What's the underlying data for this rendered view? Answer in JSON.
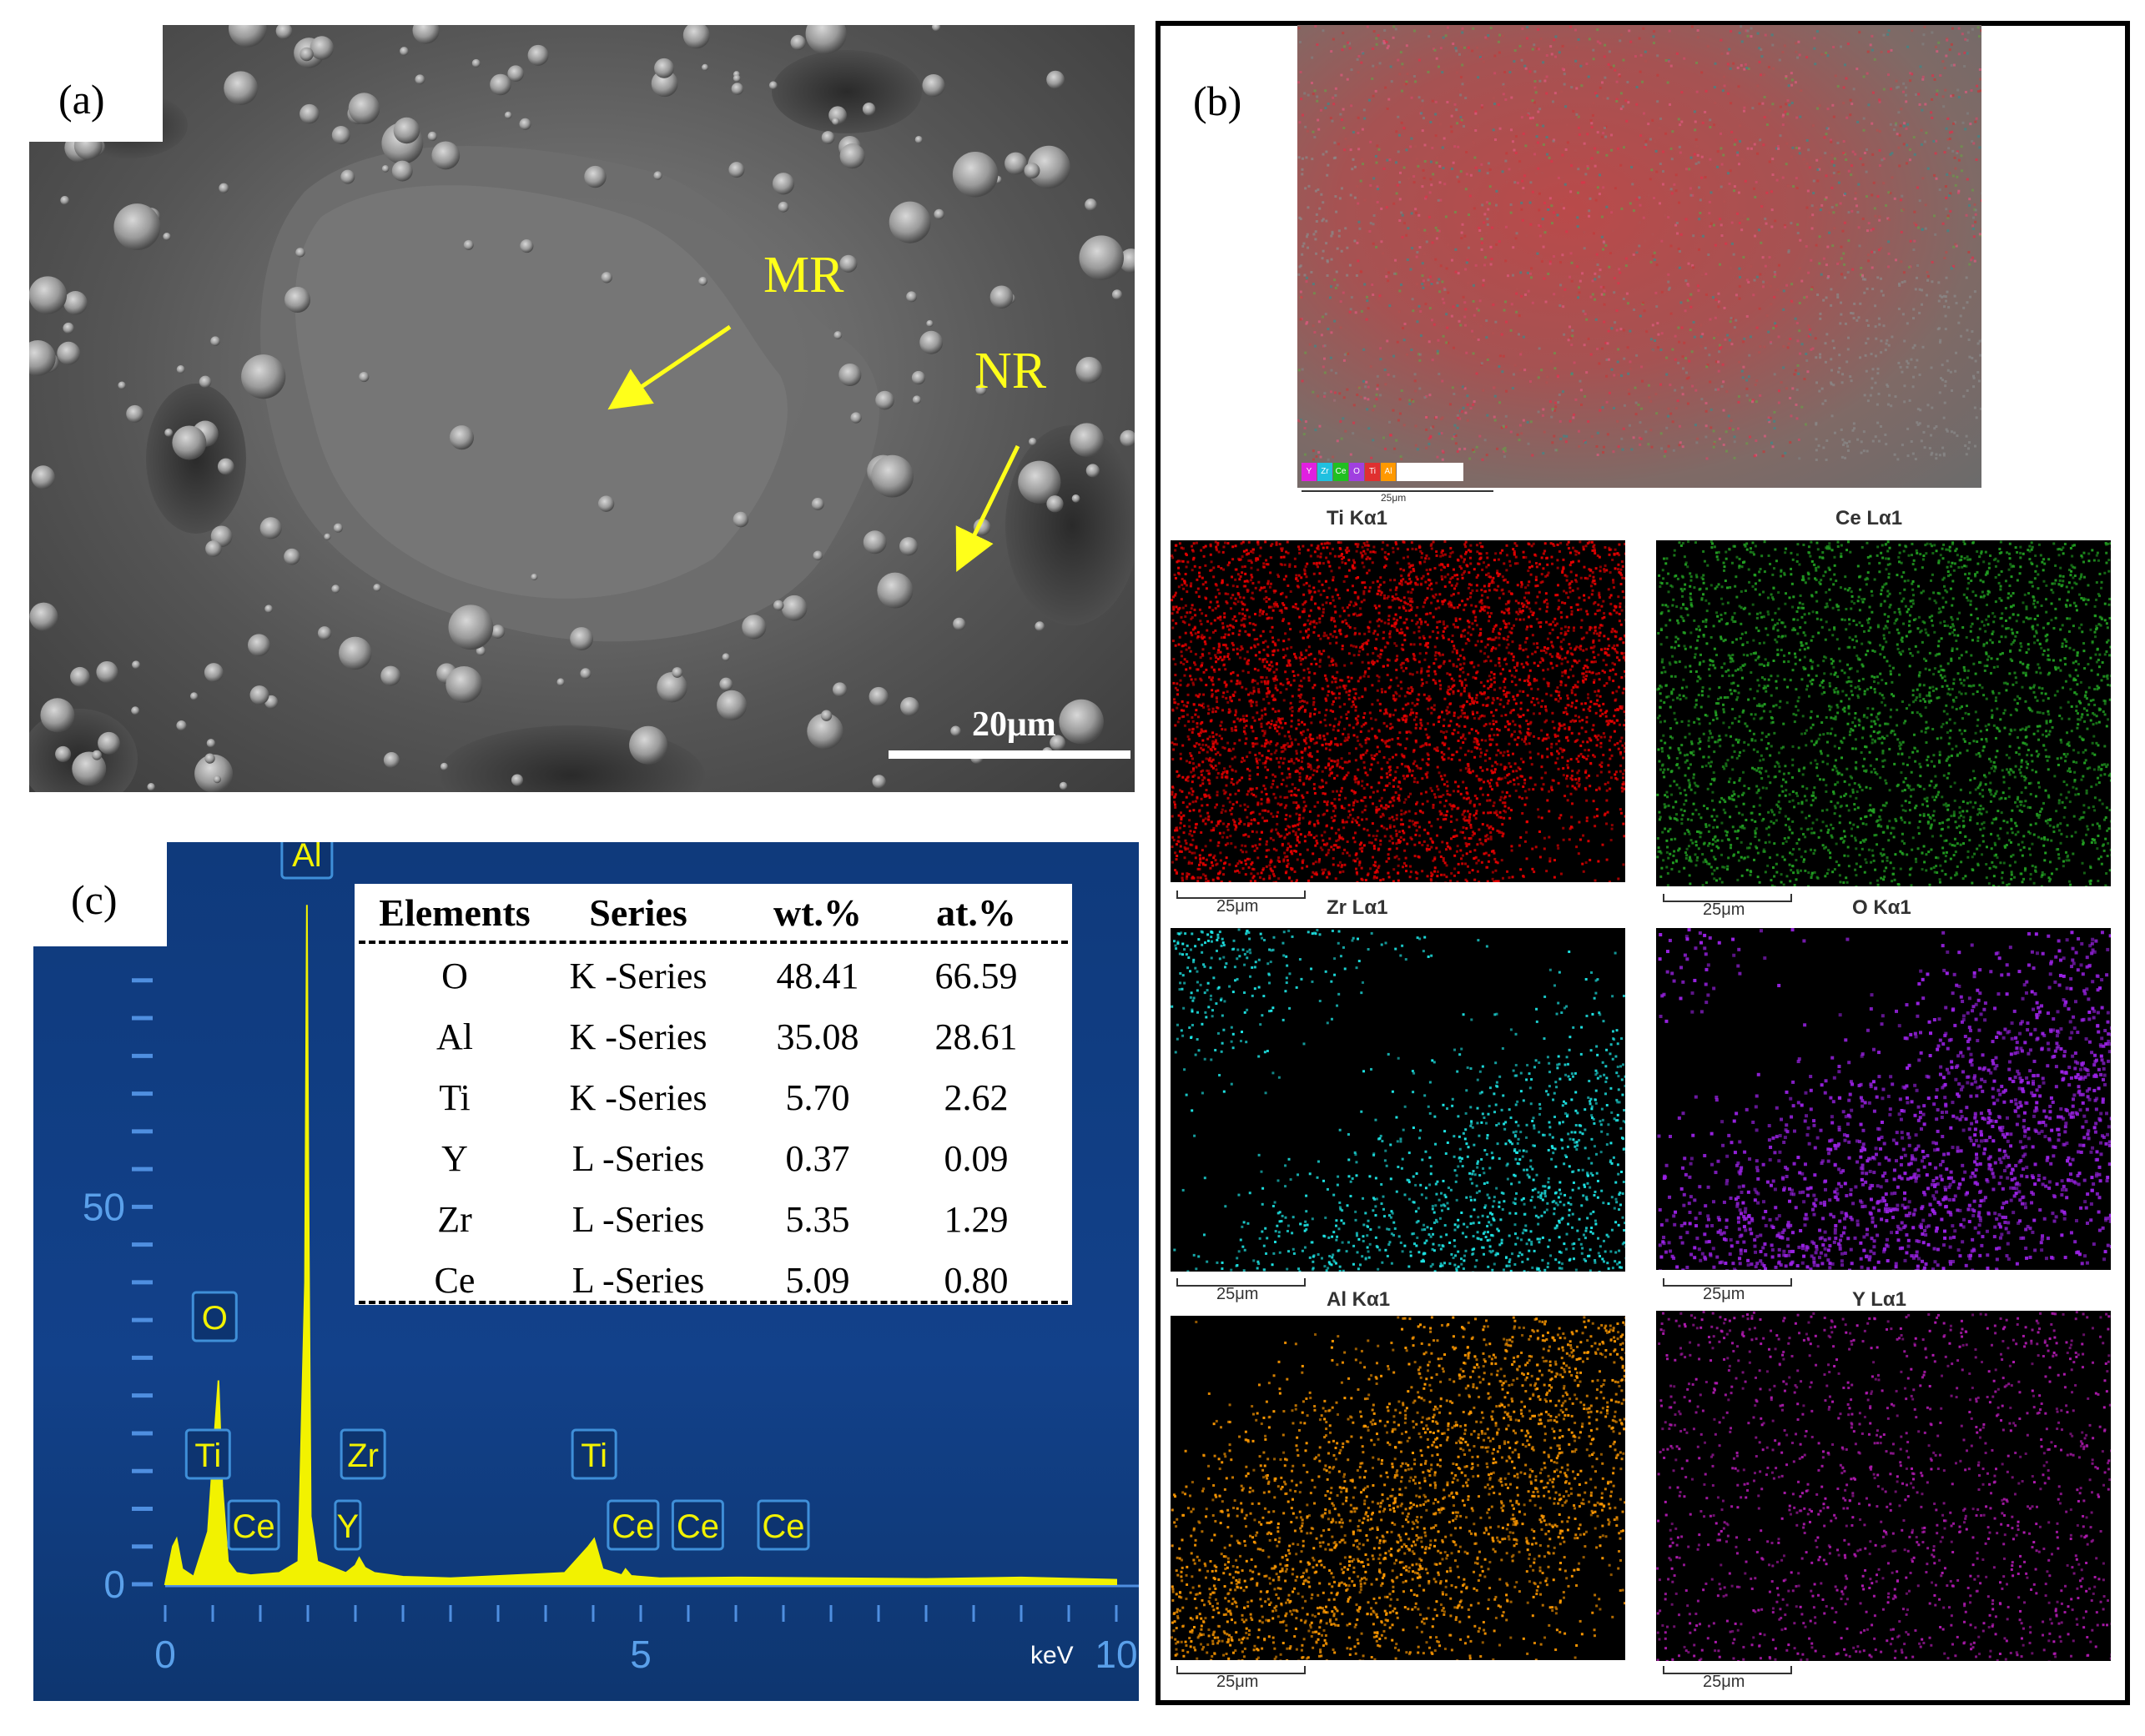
{
  "panels": {
    "a": {
      "label": "(a)",
      "annotations": [
        {
          "key": "mr",
          "text": "MR"
        },
        {
          "key": "nr",
          "text": "NR"
        }
      ],
      "scale_bar": "20μm"
    },
    "b": {
      "label": "(b)",
      "composite_scale": "25μm",
      "composite_legend": [
        "Y",
        "Zr",
        "Ce",
        "O",
        "Ti",
        "Al"
      ],
      "maps": [
        {
          "title": "Ti Kα1",
          "color": "#e60000",
          "scale": "25μm"
        },
        {
          "title": "Ce Lα1",
          "color": "#22a022",
          "scale": "25μm"
        },
        {
          "title": "Zr Lα1",
          "color": "#1ee6e6",
          "scale": "25μm"
        },
        {
          "title": "O Kα1",
          "color": "#9b22e6",
          "scale": "25μm"
        },
        {
          "title": "Al Kα1",
          "color": "#ff9900",
          "scale": "25μm"
        },
        {
          "title": "Y Lα1",
          "color": "#b01ab0",
          "scale": "25μm"
        }
      ]
    },
    "c": {
      "label": "(c)",
      "table": {
        "headers": [
          "Elements",
          "Series",
          "wt.%",
          "at.%"
        ],
        "rows": [
          [
            "O",
            "K -Series",
            "48.41",
            "66.59"
          ],
          [
            "Al",
            "K -Series",
            "35.08",
            "28.61"
          ],
          [
            "Ti",
            "K -Series",
            "5.70",
            "2.62"
          ],
          [
            "Y",
            "L -Series",
            "0.37",
            "0.09"
          ],
          [
            "Zr",
            "L -Series",
            "5.35",
            "1.29"
          ],
          [
            "Ce",
            "L -Series",
            "5.09",
            "0.80"
          ]
        ]
      }
    }
  },
  "chart_data": {
    "type": "line",
    "xlabel": "keV",
    "ylabel": "",
    "xlim": [
      0,
      10
    ],
    "ylim": [
      0,
      95
    ],
    "x_ticks": [
      "0",
      "5",
      "10"
    ],
    "y_ticks": [
      "0",
      "50"
    ],
    "series": [
      {
        "x": [
          0,
          0.08,
          0.12,
          0.18,
          0.3,
          0.45,
          0.52,
          0.56,
          0.6,
          0.66,
          0.75,
          0.9,
          1.2,
          1.4,
          1.47,
          1.49,
          1.5,
          1.51,
          1.53,
          1.6,
          1.9,
          2.0,
          2.04,
          2.1,
          2.2,
          2.5,
          3.0,
          4.2,
          4.45,
          4.51,
          4.6,
          4.8,
          4.84,
          4.9,
          5.2,
          6.0,
          7.0,
          8.0,
          9.0,
          10.0
        ],
        "y": [
          0,
          5,
          6,
          2,
          1,
          7,
          20,
          27,
          13,
          3,
          1.5,
          1.2,
          1.5,
          3,
          40,
          90,
          66,
          44,
          9,
          3,
          1.5,
          2.5,
          3.5,
          2.2,
          1.5,
          1,
          0.8,
          1.5,
          5,
          6,
          2,
          1.2,
          2,
          1.1,
          0.8,
          0.9,
          0.8,
          0.7,
          0.9,
          0.6
        ]
      }
    ],
    "peak_labels": [
      {
        "text": "O",
        "x": 0.52
      },
      {
        "text": "Ti",
        "x": 0.45
      },
      {
        "text": "Ce",
        "x": 0.88
      },
      {
        "text": "Al",
        "x": 1.49
      },
      {
        "text": "Zr",
        "x": 2.04
      },
      {
        "text": "Y",
        "x": 1.92
      },
      {
        "text": "Ti",
        "x": 4.51
      },
      {
        "text": "Ce",
        "x": 4.84
      },
      {
        "text": "Ce",
        "x": 5.6
      },
      {
        "text": "Ce",
        "x": 6.5
      }
    ]
  }
}
